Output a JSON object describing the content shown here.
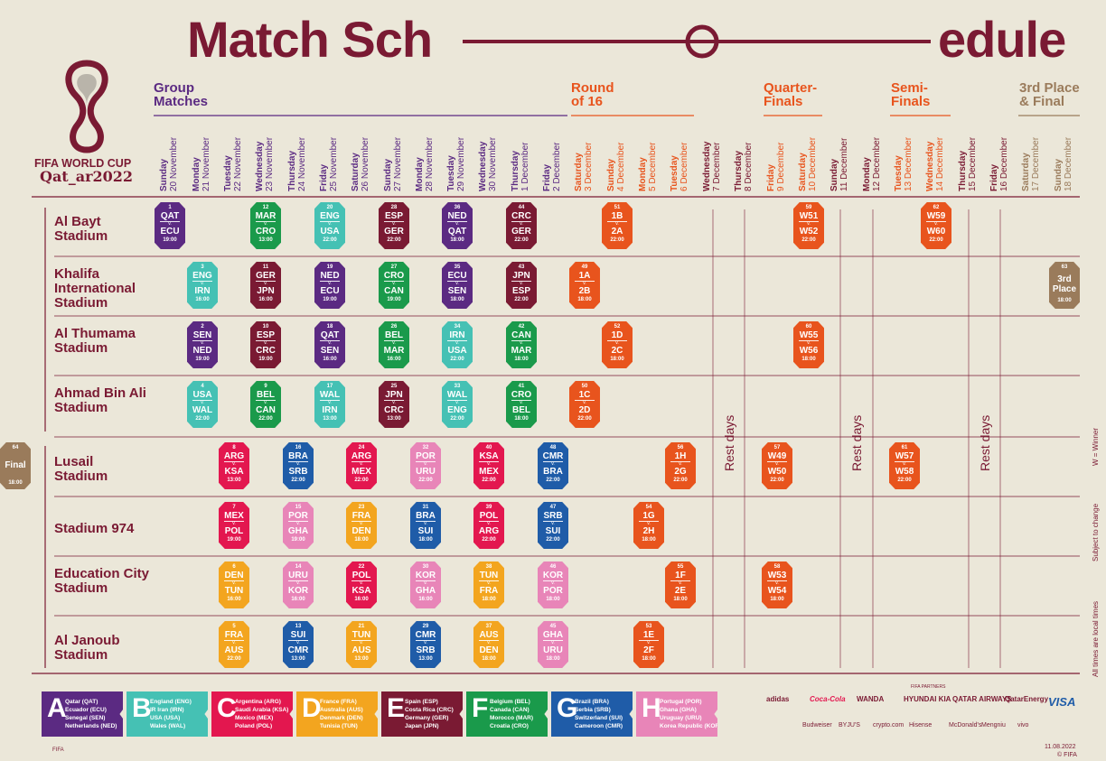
{
  "title": {
    "part1": "Match Sch",
    "part2": "edule"
  },
  "logo": {
    "line1": "FIFA WORLD CUP",
    "line2": "Qat_ar2022"
  },
  "stages": [
    {
      "l1": "Group",
      "l2": "Matches",
      "color": "#5b2a82"
    },
    {
      "l1": "Round",
      "l2": "of 16",
      "color": "#e8541d"
    },
    {
      "l1": "Quarter-",
      "l2": "Finals",
      "color": "#e8541d"
    },
    {
      "l1": "Semi-",
      "l2": "Finals",
      "color": "#e8541d"
    },
    {
      "l1": "3rd Place",
      "l2": "& Final",
      "color": "#9a7b5b"
    }
  ],
  "dates": [
    {
      "day": "Sunday",
      "date": "20 November",
      "color": "#5b2a82"
    },
    {
      "day": "Monday",
      "date": "21 November",
      "color": "#5b2a82"
    },
    {
      "day": "Tuesday",
      "date": "22 November",
      "color": "#5b2a82"
    },
    {
      "day": "Wednesday",
      "date": "23 November",
      "color": "#5b2a82"
    },
    {
      "day": "Thursday",
      "date": "24 November",
      "color": "#5b2a82"
    },
    {
      "day": "Friday",
      "date": "25 November",
      "color": "#5b2a82"
    },
    {
      "day": "Saturday",
      "date": "26 November",
      "color": "#5b2a82"
    },
    {
      "day": "Sunday",
      "date": "27 November",
      "color": "#5b2a82"
    },
    {
      "day": "Monday",
      "date": "28 November",
      "color": "#5b2a82"
    },
    {
      "day": "Tuesday",
      "date": "29 November",
      "color": "#5b2a82"
    },
    {
      "day": "Wednesday",
      "date": "30 November",
      "color": "#5b2a82"
    },
    {
      "day": "Thursday",
      "date": "1 December",
      "color": "#5b2a82"
    },
    {
      "day": "Friday",
      "date": "2 December",
      "color": "#5b2a82"
    },
    {
      "day": "Saturday",
      "date": "3 December",
      "color": "#e8541d"
    },
    {
      "day": "Sunday",
      "date": "4 December",
      "color": "#e8541d"
    },
    {
      "day": "Monday",
      "date": "5 December",
      "color": "#e8541d"
    },
    {
      "day": "Tuesday",
      "date": "6 December",
      "color": "#e8541d"
    },
    {
      "day": "Wednesday",
      "date": "7 December",
      "color": "#7a1a33"
    },
    {
      "day": "Thursday",
      "date": "8 December",
      "color": "#7a1a33"
    },
    {
      "day": "Friday",
      "date": "9 December",
      "color": "#e8541d"
    },
    {
      "day": "Saturday",
      "date": "10 December",
      "color": "#e8541d"
    },
    {
      "day": "Sunday",
      "date": "11 December",
      "color": "#7a1a33"
    },
    {
      "day": "Monday",
      "date": "12 December",
      "color": "#7a1a33"
    },
    {
      "day": "Tuesday",
      "date": "13 December",
      "color": "#e8541d"
    },
    {
      "day": "Wednesday",
      "date": "14 December",
      "color": "#e8541d"
    },
    {
      "day": "Thursday",
      "date": "15 December",
      "color": "#7a1a33"
    },
    {
      "day": "Friday",
      "date": "16 December",
      "color": "#7a1a33"
    },
    {
      "day": "Saturday",
      "date": "17 December",
      "color": "#9a7b5b"
    },
    {
      "day": "Sunday",
      "date": "18 December",
      "color": "#9a7b5b"
    }
  ],
  "venues": [
    {
      "name": "Al Bayt Stadium"
    },
    {
      "name": "Khalifa International Stadium"
    },
    {
      "name": "Al Thumama Stadium"
    },
    {
      "name": "Ahmad Bin Ali Stadium"
    },
    {
      "name": "Lusail Stadium"
    },
    {
      "name": "Stadium 974"
    },
    {
      "name": "Education City Stadium"
    },
    {
      "name": "Al Janoub Stadium"
    }
  ],
  "vs": "v.",
  "matches": [
    {
      "no": "1",
      "a": "QAT",
      "b": "ECU",
      "time": "19:00",
      "col": 0,
      "row": 0,
      "color": "#5b2a82"
    },
    {
      "no": "12",
      "a": "MAR",
      "b": "CRO",
      "time": "13:00",
      "col": 3,
      "row": 0,
      "color": "#1a9a4b"
    },
    {
      "no": "20",
      "a": "ENG",
      "b": "USA",
      "time": "22:00",
      "col": 5,
      "row": 0,
      "color": "#45c1b4"
    },
    {
      "no": "28",
      "a": "ESP",
      "b": "GER",
      "time": "22:00",
      "col": 7,
      "row": 0,
      "color": "#7a1a33"
    },
    {
      "no": "36",
      "a": "NED",
      "b": "QAT",
      "time": "18:00",
      "col": 9,
      "row": 0,
      "color": "#5b2a82"
    },
    {
      "no": "44",
      "a": "CRC",
      "b": "GER",
      "time": "22:00",
      "col": 11,
      "row": 0,
      "color": "#7a1a33"
    },
    {
      "no": "51",
      "a": "1B",
      "b": "2A",
      "time": "22:00",
      "col": 14,
      "row": 0,
      "color": "#e8541d"
    },
    {
      "no": "59",
      "a": "W51",
      "b": "W52",
      "time": "22:00",
      "col": 20,
      "row": 0,
      "color": "#e8541d"
    },
    {
      "no": "62",
      "a": "W59",
      "b": "W60",
      "time": "22:00",
      "col": 24,
      "row": 0,
      "color": "#e8541d"
    },
    {
      "no": "3",
      "a": "ENG",
      "b": "IRN",
      "time": "16:00",
      "col": 1,
      "row": 1,
      "color": "#45c1b4"
    },
    {
      "no": "11",
      "a": "GER",
      "b": "JPN",
      "time": "16:00",
      "col": 3,
      "row": 1,
      "color": "#7a1a33"
    },
    {
      "no": "19",
      "a": "NED",
      "b": "ECU",
      "time": "19:00",
      "col": 5,
      "row": 1,
      "color": "#5b2a82"
    },
    {
      "no": "27",
      "a": "CRO",
      "b": "CAN",
      "time": "19:00",
      "col": 7,
      "row": 1,
      "color": "#1a9a4b"
    },
    {
      "no": "35",
      "a": "ECU",
      "b": "SEN",
      "time": "18:00",
      "col": 9,
      "row": 1,
      "color": "#5b2a82"
    },
    {
      "no": "43",
      "a": "JPN",
      "b": "ESP",
      "time": "22:00",
      "col": 11,
      "row": 1,
      "color": "#7a1a33"
    },
    {
      "no": "49",
      "a": "1A",
      "b": "2B",
      "time": "18:00",
      "col": 13,
      "row": 1,
      "color": "#e8541d"
    },
    {
      "no": "63",
      "a": "3rd",
      "b": "Place",
      "time": "18:00",
      "col": 28,
      "row": 1,
      "color": "#9a7b5b",
      "special": true
    },
    {
      "no": "2",
      "a": "SEN",
      "b": "NED",
      "time": "19:00",
      "col": 1,
      "row": 2,
      "color": "#5b2a82"
    },
    {
      "no": "10",
      "a": "ESP",
      "b": "CRC",
      "time": "19:00",
      "col": 3,
      "row": 2,
      "color": "#7a1a33"
    },
    {
      "no": "18",
      "a": "QAT",
      "b": "SEN",
      "time": "16:00",
      "col": 5,
      "row": 2,
      "color": "#5b2a82"
    },
    {
      "no": "26",
      "a": "BEL",
      "b": "MAR",
      "time": "16:00",
      "col": 7,
      "row": 2,
      "color": "#1a9a4b"
    },
    {
      "no": "34",
      "a": "IRN",
      "b": "USA",
      "time": "22:00",
      "col": 9,
      "row": 2,
      "color": "#45c1b4"
    },
    {
      "no": "42",
      "a": "CAN",
      "b": "MAR",
      "time": "18:00",
      "col": 11,
      "row": 2,
      "color": "#1a9a4b"
    },
    {
      "no": "52",
      "a": "1D",
      "b": "2C",
      "time": "18:00",
      "col": 14,
      "row": 2,
      "color": "#e8541d"
    },
    {
      "no": "60",
      "a": "W55",
      "b": "W56",
      "time": "18:00",
      "col": 20,
      "row": 2,
      "color": "#e8541d"
    },
    {
      "no": "4",
      "a": "USA",
      "b": "WAL",
      "time": "22:00",
      "col": 1,
      "row": 3,
      "color": "#45c1b4"
    },
    {
      "no": "9",
      "a": "BEL",
      "b": "CAN",
      "time": "22:00",
      "col": 3,
      "row": 3,
      "color": "#1a9a4b"
    },
    {
      "no": "17",
      "a": "WAL",
      "b": "IRN",
      "time": "13:00",
      "col": 5,
      "row": 3,
      "color": "#45c1b4"
    },
    {
      "no": "25",
      "a": "JPN",
      "b": "CRC",
      "time": "13:00",
      "col": 7,
      "row": 3,
      "color": "#7a1a33"
    },
    {
      "no": "33",
      "a": "WAL",
      "b": "ENG",
      "time": "22:00",
      "col": 9,
      "row": 3,
      "color": "#45c1b4"
    },
    {
      "no": "41",
      "a": "CRO",
      "b": "BEL",
      "time": "18:00",
      "col": 11,
      "row": 3,
      "color": "#1a9a4b"
    },
    {
      "no": "50",
      "a": "1C",
      "b": "2D",
      "time": "22:00",
      "col": 13,
      "row": 3,
      "color": "#e8541d"
    },
    {
      "no": "8",
      "a": "ARG",
      "b": "KSA",
      "time": "13:00",
      "col": 2,
      "row": 4,
      "color": "#e3174f"
    },
    {
      "no": "16",
      "a": "BRA",
      "b": "SRB",
      "time": "22:00",
      "col": 4,
      "row": 4,
      "color": "#1f5ca8"
    },
    {
      "no": "24",
      "a": "ARG",
      "b": "MEX",
      "time": "22:00",
      "col": 6,
      "row": 4,
      "color": "#e3174f"
    },
    {
      "no": "32",
      "a": "POR",
      "b": "URU",
      "time": "22:00",
      "col": 8,
      "row": 4,
      "color": "#e885b8"
    },
    {
      "no": "40",
      "a": "KSA",
      "b": "MEX",
      "time": "22:00",
      "col": 10,
      "row": 4,
      "color": "#e3174f"
    },
    {
      "no": "48",
      "a": "CMR",
      "b": "BRA",
      "time": "22:00",
      "col": 12,
      "row": 4,
      "color": "#1f5ca8"
    },
    {
      "no": "56",
      "a": "1H",
      "b": "2G",
      "time": "22:00",
      "col": 16,
      "row": 4,
      "color": "#e8541d"
    },
    {
      "no": "57",
      "a": "W49",
      "b": "W50",
      "time": "22:00",
      "col": 19,
      "row": 4,
      "color": "#e8541d"
    },
    {
      "no": "61",
      "a": "W57",
      "b": "W58",
      "time": "22:00",
      "col": 23,
      "row": 4,
      "color": "#e8541d"
    },
    {
      "no": "64",
      "a": "Final",
      "b": "",
      "time": "18:00",
      "col": 29,
      "row": 4,
      "color": "#9a7b5b",
      "special": true
    },
    {
      "no": "7",
      "a": "MEX",
      "b": "POL",
      "time": "19:00",
      "col": 2,
      "row": 5,
      "color": "#e3174f"
    },
    {
      "no": "15",
      "a": "POR",
      "b": "GHA",
      "time": "19:00",
      "col": 4,
      "row": 5,
      "color": "#e885b8"
    },
    {
      "no": "23",
      "a": "FRA",
      "b": "DEN",
      "time": "18:00",
      "col": 6,
      "row": 5,
      "color": "#f3a51f"
    },
    {
      "no": "31",
      "a": "BRA",
      "b": "SUI",
      "time": "18:00",
      "col": 8,
      "row": 5,
      "color": "#1f5ca8"
    },
    {
      "no": "39",
      "a": "POL",
      "b": "ARG",
      "time": "22:00",
      "col": 10,
      "row": 5,
      "color": "#e3174f"
    },
    {
      "no": "47",
      "a": "SRB",
      "b": "SUI",
      "time": "22:00",
      "col": 12,
      "row": 5,
      "color": "#1f5ca8"
    },
    {
      "no": "54",
      "a": "1G",
      "b": "2H",
      "time": "18:00",
      "col": 15,
      "row": 5,
      "color": "#e8541d"
    },
    {
      "no": "6",
      "a": "DEN",
      "b": "TUN",
      "time": "16:00",
      "col": 2,
      "row": 6,
      "color": "#f3a51f"
    },
    {
      "no": "14",
      "a": "URU",
      "b": "KOR",
      "time": "16:00",
      "col": 4,
      "row": 6,
      "color": "#e885b8"
    },
    {
      "no": "22",
      "a": "POL",
      "b": "KSA",
      "time": "16:00",
      "col": 6,
      "row": 6,
      "color": "#e3174f"
    },
    {
      "no": "30",
      "a": "KOR",
      "b": "GHA",
      "time": "16:00",
      "col": 8,
      "row": 6,
      "color": "#e885b8"
    },
    {
      "no": "38",
      "a": "TUN",
      "b": "FRA",
      "time": "18:00",
      "col": 10,
      "row": 6,
      "color": "#f3a51f"
    },
    {
      "no": "46",
      "a": "KOR",
      "b": "POR",
      "time": "18:00",
      "col": 12,
      "row": 6,
      "color": "#e885b8"
    },
    {
      "no": "55",
      "a": "1F",
      "b": "2E",
      "time": "18:00",
      "col": 16,
      "row": 6,
      "color": "#e8541d"
    },
    {
      "no": "58",
      "a": "W53",
      "b": "W54",
      "time": "18:00",
      "col": 19,
      "row": 6,
      "color": "#e8541d"
    },
    {
      "no": "5",
      "a": "FRA",
      "b": "AUS",
      "time": "22:00",
      "col": 2,
      "row": 7,
      "color": "#f3a51f"
    },
    {
      "no": "13",
      "a": "SUI",
      "b": "CMR",
      "time": "13:00",
      "col": 4,
      "row": 7,
      "color": "#1f5ca8"
    },
    {
      "no": "21",
      "a": "TUN",
      "b": "AUS",
      "time": "13:00",
      "col": 6,
      "row": 7,
      "color": "#f3a51f"
    },
    {
      "no": "29",
      "a": "CMR",
      "b": "SRB",
      "time": "13:00",
      "col": 8,
      "row": 7,
      "color": "#1f5ca8"
    },
    {
      "no": "37",
      "a": "AUS",
      "b": "DEN",
      "time": "18:00",
      "col": 10,
      "row": 7,
      "color": "#f3a51f"
    },
    {
      "no": "45",
      "a": "GHA",
      "b": "URU",
      "time": "18:00",
      "col": 12,
      "row": 7,
      "color": "#e885b8"
    },
    {
      "no": "53",
      "a": "1E",
      "b": "2F",
      "time": "18:00",
      "col": 15,
      "row": 7,
      "color": "#e8541d"
    }
  ],
  "rest_days": [
    "Rest days",
    "Rest days",
    "Rest days"
  ],
  "side_notes": [
    "W = Winner",
    "Subject to change",
    "All times are local times"
  ],
  "groups": [
    {
      "letter": "A",
      "color": "#5b2a82",
      "teams": [
        "Qatar (QAT)",
        "Ecuador (ECU)",
        "Senegal (SEN)",
        "Netherlands (NED)"
      ]
    },
    {
      "letter": "B",
      "color": "#45c1b4",
      "teams": [
        "England (ENG)",
        "IR Iran (IRN)",
        "USA (USA)",
        "Wales (WAL)"
      ]
    },
    {
      "letter": "C",
      "color": "#e3174f",
      "teams": [
        "Argentina (ARG)",
        "Saudi Arabia (KSA)",
        "Mexico (MEX)",
        "Poland (POL)"
      ]
    },
    {
      "letter": "D",
      "color": "#f3a51f",
      "teams": [
        "France (FRA)",
        "Australia (AUS)",
        "Denmark (DEN)",
        "Tunisia (TUN)"
      ]
    },
    {
      "letter": "E",
      "color": "#7a1a33",
      "teams": [
        "Spain (ESP)",
        "Costa Rica (CRC)",
        "Germany (GER)",
        "Japan (JPN)"
      ]
    },
    {
      "letter": "F",
      "color": "#1a9a4b",
      "teams": [
        "Belgium (BEL)",
        "Canada (CAN)",
        "Morocco (MAR)",
        "Croatia (CRO)"
      ]
    },
    {
      "letter": "G",
      "color": "#1f5ca8",
      "teams": [
        "Brazil (BRA)",
        "Serbia (SRB)",
        "Switzerland (SUI)",
        "Cameroon (CMR)"
      ]
    },
    {
      "letter": "H",
      "color": "#e885b8",
      "teams": [
        "Portugal (POR)",
        "Ghana (GHA)",
        "Uruguay (URU)",
        "Korea Republic (KOR)"
      ]
    }
  ],
  "sponsors_row1": [
    "adidas",
    "Coca-Cola",
    "WANDA",
    "HYUNDAI KIA",
    "QATAR AIRWAYS",
    "QatarEnergy",
    "VISA"
  ],
  "sponsors_row2": [
    "Budweiser",
    "BYJU'S",
    "crypto.com",
    "Hisense",
    "McDonald's",
    "Mengniu",
    "vivo"
  ],
  "sponsors_label": "FIFA PARTNERS",
  "footer": {
    "date": "11.08.2022",
    "copyright": "© FIFA",
    "left": "FIFA"
  }
}
